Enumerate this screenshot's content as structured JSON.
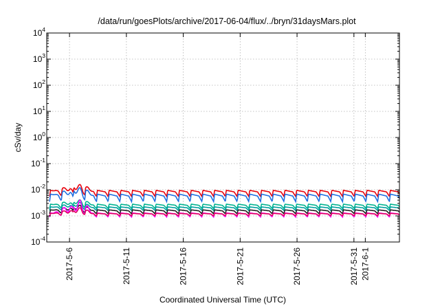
{
  "chart_data": {
    "type": "line",
    "title": "/data/run/goesPlots/archive/2017-06-04/flux/../bryn/31daysMars.plot",
    "xlabel": "Coordinated Universal Time (UTC)",
    "ylabel": "cSv/day",
    "y_scale": "log",
    "ylim": [
      0.0001,
      10000
    ],
    "y_ticks": [
      {
        "value": 0.0001,
        "base": "10",
        "exp": "-4"
      },
      {
        "value": 0.001,
        "base": "10",
        "exp": "-3"
      },
      {
        "value": 0.01,
        "base": "10",
        "exp": "-2"
      },
      {
        "value": 0.1,
        "base": "10",
        "exp": "-1"
      },
      {
        "value": 1,
        "base": "10",
        "exp": "0"
      },
      {
        "value": 10,
        "base": "10",
        "exp": "1"
      },
      {
        "value": 100,
        "base": "10",
        "exp": "2"
      },
      {
        "value": 1000,
        "base": "10",
        "exp": "3"
      },
      {
        "value": 10000,
        "base": "10",
        "exp": "4"
      }
    ],
    "xlim": [
      "2017-05-04",
      "2017-06-04"
    ],
    "x_ticks": [
      {
        "date": "2017-05-06",
        "label": "2017-5-6"
      },
      {
        "date": "2017-05-11",
        "label": "2017-5-11"
      },
      {
        "date": "2017-05-16",
        "label": "2017-5-16"
      },
      {
        "date": "2017-05-21",
        "label": "2017-5-21"
      },
      {
        "date": "2017-05-26",
        "label": "2017-5-26"
      },
      {
        "date": "2017-05-31",
        "label": "2017-5-31"
      },
      {
        "date": "2017-06-01",
        "label": "2017-6-1"
      }
    ],
    "grid": true,
    "legend": "none",
    "series": [
      {
        "color": "#e8000b",
        "baseline": 0.0095,
        "min": 0.0055,
        "peak": 0.018,
        "peak_date": "2017-05-07"
      },
      {
        "color": "#1f6fe0",
        "baseline": 0.0068,
        "min": 0.0035,
        "peak": 0.014,
        "peak_date": "2017-05-07"
      },
      {
        "color": "#00b38f",
        "baseline": 0.0028,
        "min": 0.0019,
        "peak": 0.0045,
        "peak_date": "2017-05-07"
      },
      {
        "color": "#00a0a0",
        "baseline": 0.0022,
        "min": 0.0016,
        "peak": 0.0035,
        "peak_date": "2017-05-07"
      },
      {
        "color": "#202020",
        "baseline": 0.0017,
        "min": 0.0012,
        "peak": 0.0028,
        "peak_date": "2017-05-07"
      },
      {
        "color": "#ff00ff",
        "baseline": 0.0013,
        "min": 0.0009,
        "peak": 0.0045,
        "peak_date": "2017-05-07"
      },
      {
        "color": "#e00060",
        "baseline": 0.00125,
        "min": 0.001,
        "peak": 0.0022,
        "peak_date": "2017-05-07"
      }
    ]
  }
}
